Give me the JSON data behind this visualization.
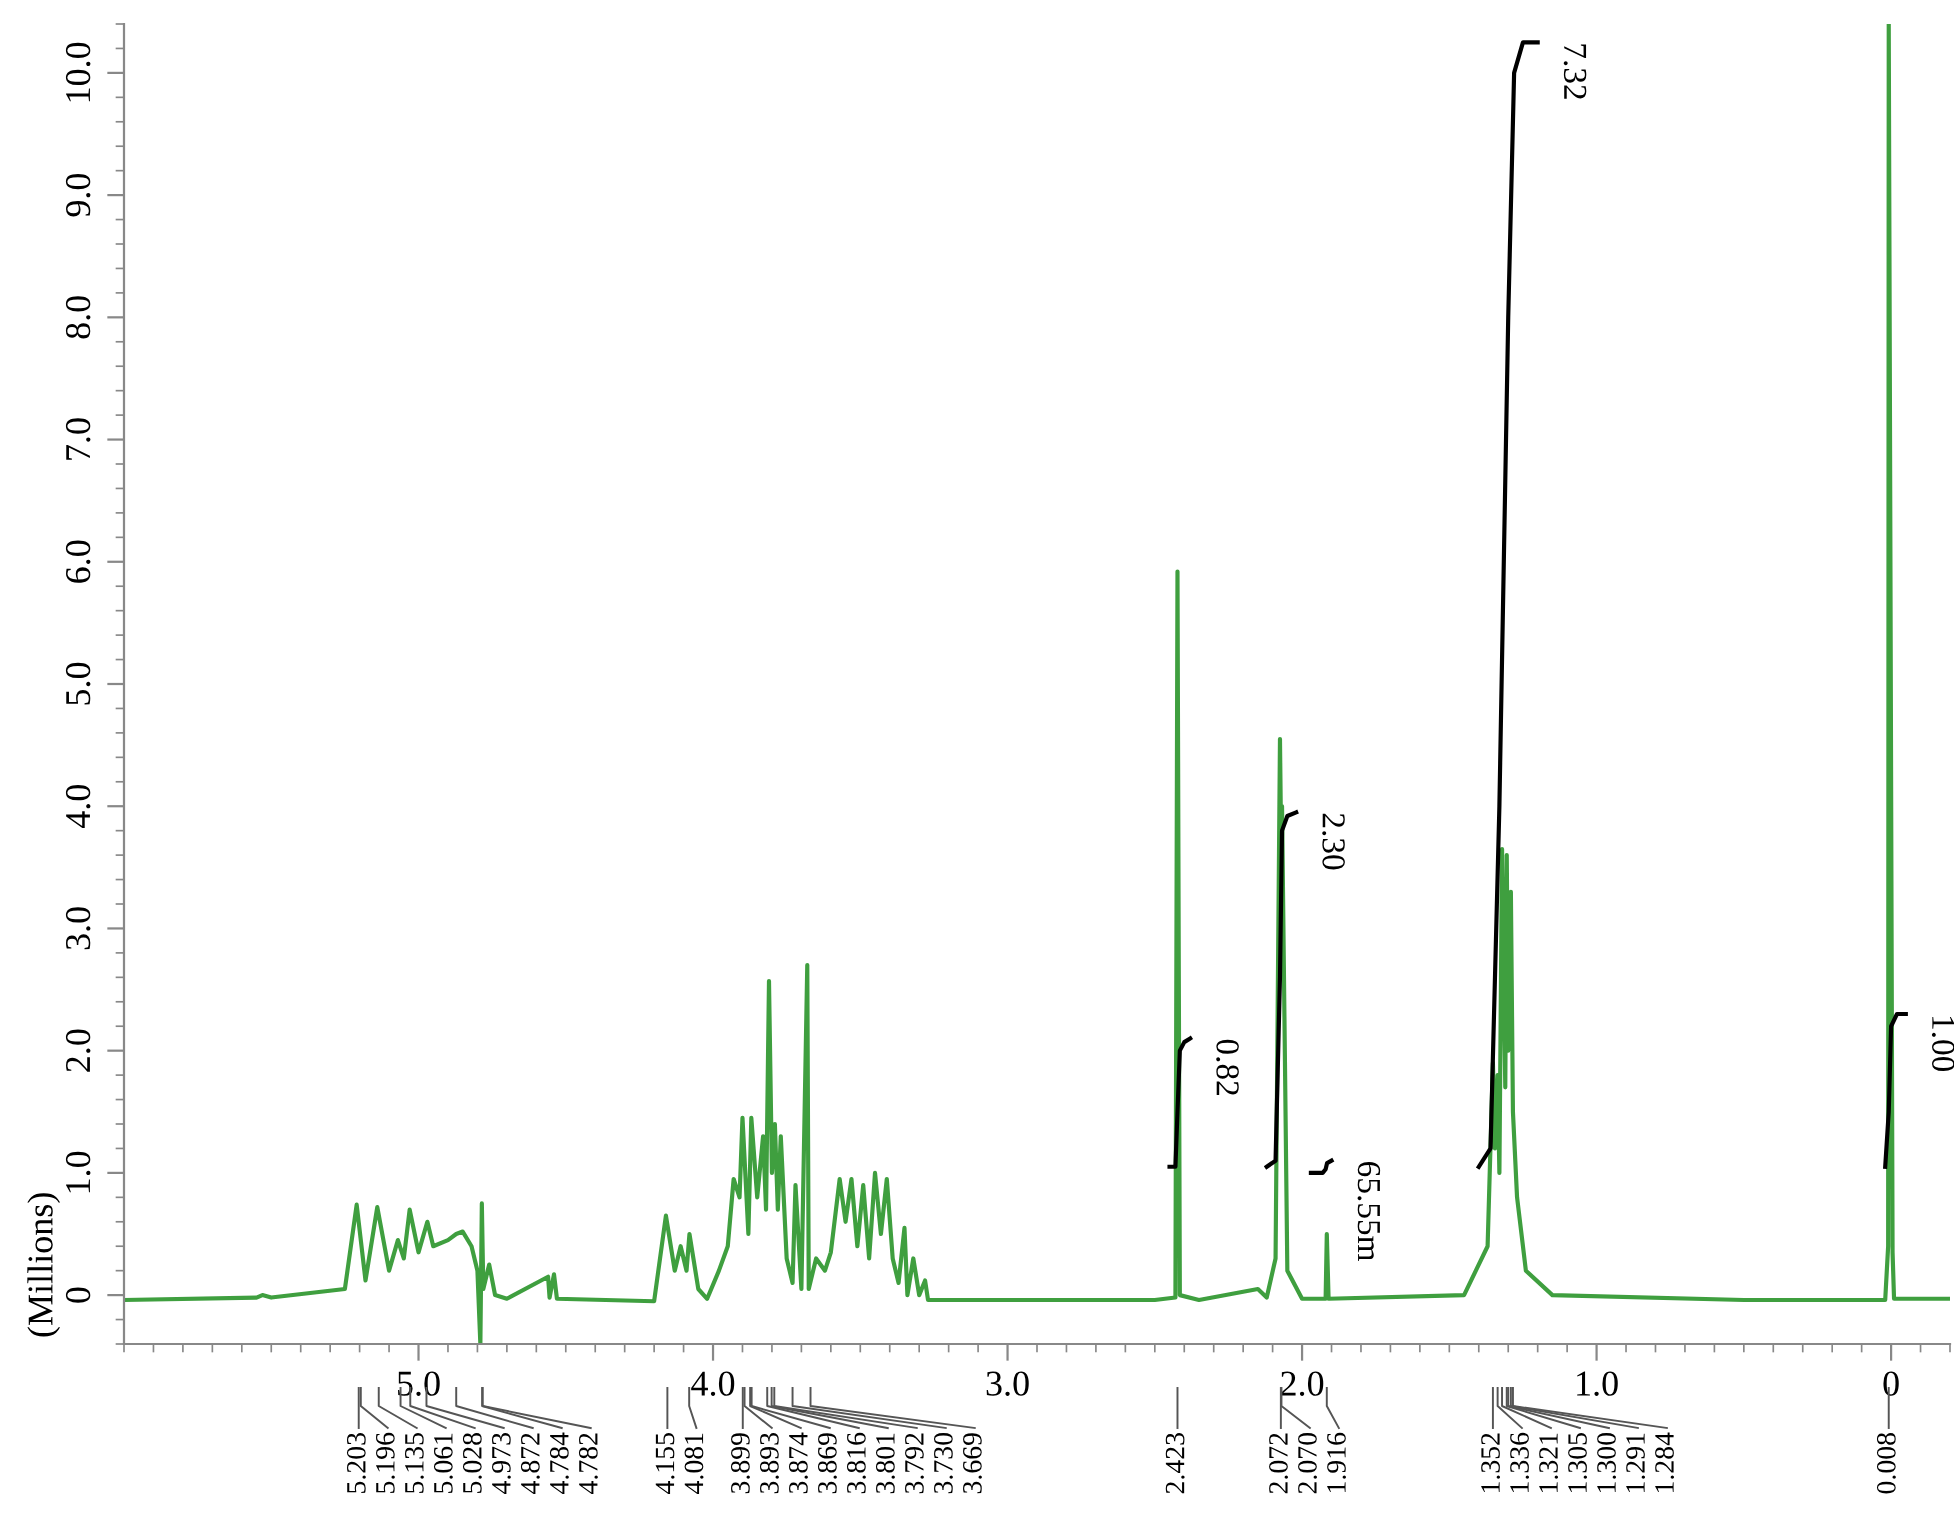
{
  "chart_data": {
    "type": "line",
    "ylabel": "(Millions)",
    "xlim": [
      6.0,
      -0.2
    ],
    "xticks": [
      {
        "value": 5.0,
        "label": "5.0"
      },
      {
        "value": 4.0,
        "label": "4.0"
      },
      {
        "value": 3.0,
        "label": "3.0"
      },
      {
        "value": 2.0,
        "label": "2.0"
      },
      {
        "value": 1.0,
        "label": "1.0"
      },
      0
    ],
    "ylim": [
      -0.4,
      10.4
    ],
    "yticks": [
      0,
      {
        "value": 1.0,
        "label": "1.0"
      },
      {
        "value": 2.0,
        "label": "2.0"
      },
      {
        "value": 3.0,
        "label": "3.0"
      },
      {
        "value": 4.0,
        "label": "4.0"
      },
      {
        "value": 5.0,
        "label": "5.0"
      },
      {
        "value": 6.0,
        "label": "6.0"
      },
      {
        "value": 7.0,
        "label": "7.0"
      },
      {
        "value": 8.0,
        "label": "8.0"
      },
      {
        "value": 9.0,
        "label": "9.0"
      },
      {
        "value": 10.0,
        "label": "10.0"
      }
    ],
    "grid": false,
    "line_style": "solid",
    "marker": "none",
    "series": [
      {
        "color": "#3f9f3f",
        "x": [
          6.0,
          5.55,
          5.53,
          5.5,
          5.25,
          5.21,
          5.18,
          5.14,
          5.1,
          5.07,
          5.05,
          5.03,
          5.0,
          4.97,
          4.95,
          4.9,
          4.872,
          4.85,
          4.82,
          4.8,
          4.79,
          4.785,
          4.78,
          4.76,
          4.74,
          4.7,
          4.56,
          4.555,
          4.54,
          4.53,
          4.2,
          4.16,
          4.13,
          4.11,
          4.09,
          4.08,
          4.05,
          4.02,
          3.98,
          3.95,
          3.93,
          3.91,
          3.9,
          3.88,
          3.87,
          3.85,
          3.83,
          3.82,
          3.81,
          3.8,
          3.79,
          3.78,
          3.77,
          3.75,
          3.73,
          3.72,
          3.7,
          3.68,
          3.675,
          3.65,
          3.62,
          3.6,
          3.57,
          3.55,
          3.53,
          3.51,
          3.49,
          3.47,
          3.45,
          3.43,
          3.41,
          3.39,
          3.37,
          3.35,
          3.34,
          3.32,
          3.3,
          3.28,
          3.27,
          2.5,
          2.43,
          2.423,
          2.415,
          2.35,
          2.15,
          2.12,
          2.09,
          2.075,
          2.072,
          2.068,
          2.05,
          2.0,
          1.92,
          1.916,
          1.91,
          1.45,
          1.37,
          1.352,
          1.345,
          1.336,
          1.33,
          1.321,
          1.31,
          1.305,
          1.3,
          1.291,
          1.284,
          1.27,
          1.24,
          1.15,
          0.5,
          0.02,
          0.01,
          0.008,
          -0.005,
          -0.01,
          -0.2
        ],
        "values": [
          -0.04,
          -0.02,
          0.0,
          -0.02,
          0.05,
          0.74,
          0.12,
          0.72,
          0.2,
          0.45,
          0.3,
          0.7,
          0.35,
          0.6,
          0.4,
          0.45,
          0.5,
          0.52,
          0.4,
          0.2,
          -0.4,
          0.75,
          0.05,
          0.25,
          0.0,
          -0.03,
          0.15,
          -0.02,
          0.17,
          -0.03,
          -0.05,
          0.65,
          0.2,
          0.4,
          0.2,
          0.5,
          0.05,
          -0.03,
          0.2,
          0.4,
          0.95,
          0.8,
          1.45,
          0.5,
          1.45,
          0.8,
          1.3,
          0.7,
          2.57,
          1.0,
          1.4,
          0.7,
          1.3,
          0.3,
          0.1,
          0.9,
          0.05,
          2.7,
          0.05,
          0.3,
          0.2,
          0.35,
          0.95,
          0.6,
          0.95,
          0.4,
          0.9,
          0.3,
          1.0,
          0.5,
          0.95,
          0.3,
          0.1,
          0.55,
          0.0,
          0.3,
          0.0,
          0.12,
          -0.04,
          -0.04,
          -0.02,
          5.92,
          0.0,
          -0.04,
          0.05,
          -0.02,
          0.3,
          4.55,
          3.9,
          4.0,
          0.2,
          -0.03,
          -0.03,
          0.5,
          -0.03,
          0.0,
          0.4,
          1.9,
          1.2,
          1.8,
          1.0,
          3.65,
          1.7,
          3.6,
          2.0,
          3.3,
          1.5,
          0.8,
          0.2,
          0.0,
          -0.04,
          -0.04,
          0.4,
          10.4,
          0.35,
          -0.03,
          -0.03
        ]
      },
      {
        "color": "#000000",
        "x": [
          2.45,
          2.43,
          2.423,
          2.415,
          2.4,
          2.38,
          2.25,
          2.12,
          2.09,
          2.075,
          2.068,
          2.05,
          2.02,
          1.98,
          1.97,
          1.93,
          1.92,
          1.915,
          1.9,
          1.6,
          1.4,
          1.36,
          1.33,
          1.3,
          1.28,
          1.25,
          1.2,
          0.5,
          0.02,
          0.008,
          0.0,
          -0.02,
          -0.05
        ],
        "values": [
          1.05,
          1.05,
          1.5,
          2.0,
          2.07,
          2.1,
          null,
          1.05,
          1.1,
          2.6,
          3.8,
          3.92,
          3.95,
          null,
          1.0,
          1.0,
          1.03,
          1.08,
          1.1,
          null,
          1.05,
          1.2,
          4.0,
          8.0,
          10.0,
          10.25,
          10.25,
          null,
          1.05,
          1.5,
          2.2,
          2.3,
          2.3
        ]
      }
    ],
    "annotations": [
      {
        "text": "0.82",
        "x": 2.38,
        "y": 2.1
      },
      {
        "text": "2.30",
        "x": 2.02,
        "y": 3.95
      },
      {
        "text": "65.55m",
        "x": 1.9,
        "y": 1.1
      },
      {
        "text": "7.32",
        "x": 1.2,
        "y": 10.25
      },
      {
        "text": "1.00",
        "x": -0.05,
        "y": 2.3
      },
      {
        "text": "5.203",
        "x": 5.203
      },
      {
        "text": "5.196",
        "x": 5.196
      },
      {
        "text": "5.135",
        "x": 5.135
      },
      {
        "text": "5.061",
        "x": 5.061
      },
      {
        "text": "5.028",
        "x": 5.028
      },
      {
        "text": "4.973",
        "x": 4.973
      },
      {
        "text": "4.872",
        "x": 4.872
      },
      {
        "text": "4.784",
        "x": 4.784
      },
      {
        "text": "4.782",
        "x": 4.782
      },
      {
        "text": "4.155",
        "x": 4.155
      },
      {
        "text": "4.081",
        "x": 4.081
      },
      {
        "text": "3.899",
        "x": 3.899
      },
      {
        "text": "3.893",
        "x": 3.893
      },
      {
        "text": "3.874",
        "x": 3.874
      },
      {
        "text": "3.869",
        "x": 3.869
      },
      {
        "text": "3.816",
        "x": 3.816
      },
      {
        "text": "3.801",
        "x": 3.801
      },
      {
        "text": "3.792",
        "x": 3.792
      },
      {
        "text": "3.730",
        "x": 3.73
      },
      {
        "text": "3.669",
        "x": 3.669
      },
      {
        "text": "2.423",
        "x": 2.423
      },
      {
        "text": "2.072",
        "x": 2.072
      },
      {
        "text": "2.070",
        "x": 2.07
      },
      {
        "text": "1.916",
        "x": 1.916
      },
      {
        "text": "1.352",
        "x": 1.352
      },
      {
        "text": "1.336",
        "x": 1.336
      },
      {
        "text": "1.321",
        "x": 1.321
      },
      {
        "text": "1.305",
        "x": 1.305
      },
      {
        "text": "1.300",
        "x": 1.3
      },
      {
        "text": "1.291",
        "x": 1.291
      },
      {
        "text": "1.284",
        "x": 1.284
      },
      {
        "text": "0.008",
        "x": 0.008
      }
    ]
  }
}
